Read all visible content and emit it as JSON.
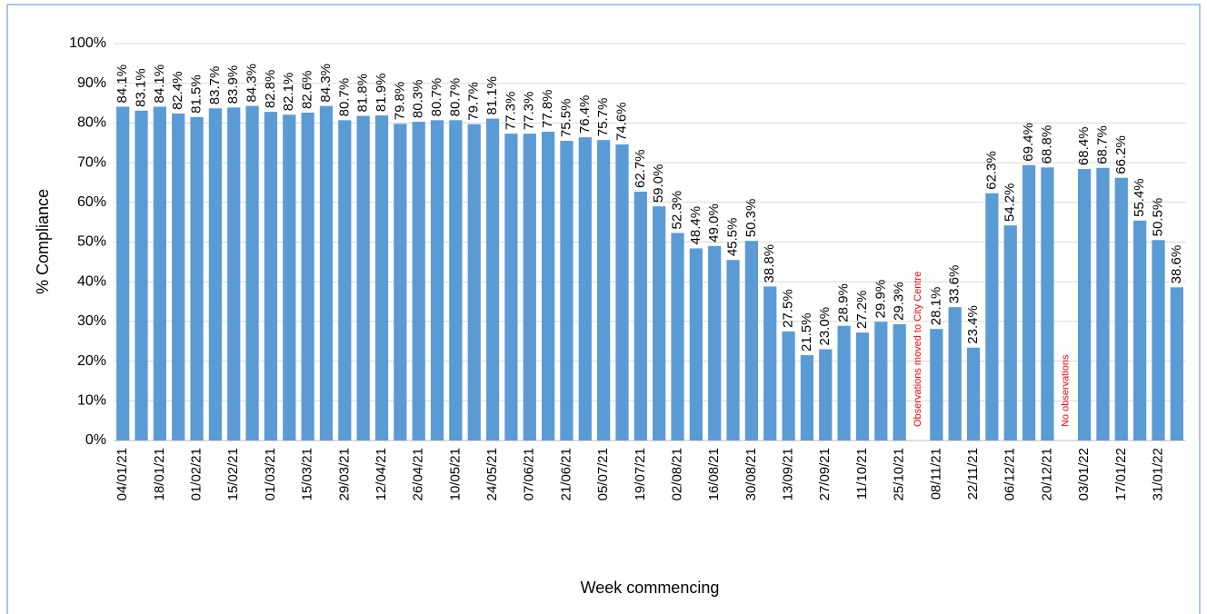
{
  "chart_data": {
    "type": "bar",
    "y_axis_label": "% Compliance",
    "x_axis_label": "Week commencing",
    "color": "#5b9bd5",
    "grid": true,
    "ylim": [
      0,
      100
    ],
    "yticks": [
      {
        "value": 0,
        "label": "0%"
      },
      {
        "value": 10,
        "label": "10%"
      },
      {
        "value": 20,
        "label": "20%"
      },
      {
        "value": 30,
        "label": "30%"
      },
      {
        "value": 40,
        "label": "40%"
      },
      {
        "value": 50,
        "label": "50%"
      },
      {
        "value": 60,
        "label": "60%"
      },
      {
        "value": 70,
        "label": "70%"
      },
      {
        "value": 80,
        "label": "80%"
      },
      {
        "value": 90,
        "label": "90%"
      },
      {
        "value": 100,
        "label": "100%"
      }
    ],
    "categories": [
      "04/01/21",
      null,
      "18/01/21",
      null,
      "01/02/21",
      null,
      "15/02/21",
      null,
      "01/03/21",
      null,
      "15/03/21",
      null,
      "29/03/21",
      null,
      "12/04/21",
      null,
      "26/04/21",
      null,
      "10/05/21",
      null,
      "24/05/21",
      null,
      "07/06/21",
      null,
      "21/06/21",
      null,
      "05/07/21",
      null,
      "19/07/21",
      null,
      "02/08/21",
      null,
      "16/08/21",
      null,
      "30/08/21",
      null,
      "13/09/21",
      null,
      "27/09/21",
      null,
      "11/10/21",
      null,
      "25/10/21",
      null,
      "08/11/21",
      null,
      "22/11/21",
      null,
      "06/12/21",
      null,
      "20/12/21",
      null,
      "03/01/22",
      null,
      "17/01/22",
      null,
      "31/01/22",
      null
    ],
    "values": [
      84.1,
      83.1,
      84.1,
      82.4,
      81.5,
      83.7,
      83.9,
      84.3,
      82.8,
      82.1,
      82.6,
      84.3,
      80.7,
      81.8,
      81.9,
      79.8,
      80.3,
      80.7,
      80.7,
      79.7,
      81.1,
      77.3,
      77.3,
      77.8,
      75.5,
      76.4,
      75.7,
      74.6,
      62.7,
      59.0,
      52.3,
      48.4,
      49.0,
      45.5,
      50.3,
      38.8,
      27.5,
      21.5,
      23.0,
      28.9,
      27.2,
      29.9,
      29.3,
      null,
      28.1,
      33.6,
      23.4,
      62.3,
      54.2,
      69.4,
      68.8,
      null,
      68.4,
      68.7,
      66.2,
      55.4,
      50.5,
      38.6
    ],
    "value_labels": [
      "84.1%",
      "83.1%",
      "84.1%",
      "82.4%",
      "81.5%",
      "83.7%",
      "83.9%",
      "84.3%",
      "82.8%",
      "82.1%",
      "82.6%",
      "84.3%",
      "80.7%",
      "81.8%",
      "81.9%",
      "79.8%",
      "80.3%",
      "80.7%",
      "80.7%",
      "79.7%",
      "81.1%",
      "77.3%",
      "77.3%",
      "77.8%",
      "75.5%",
      "76.4%",
      "75.7%",
      "74.6%",
      "62.7%",
      "59.0%",
      "52.3%",
      "48.4%",
      "49.0%",
      "45.5%",
      "50.3%",
      "38.8%",
      "27.5%",
      "21.5%",
      "23.0%",
      "28.9%",
      "27.2%",
      "29.9%",
      "29.3%",
      null,
      "28.1%",
      "33.6%",
      "23.4%",
      "62.3%",
      "54.2%",
      "69.4%",
      "68.8%",
      null,
      "68.4%",
      "68.7%",
      "66.2%",
      "55.4%",
      "50.5%",
      "38.6%"
    ],
    "annotations": [
      "Observations moved to City Centre",
      "No observations"
    ],
    "annotation_color": "#ff0000"
  }
}
